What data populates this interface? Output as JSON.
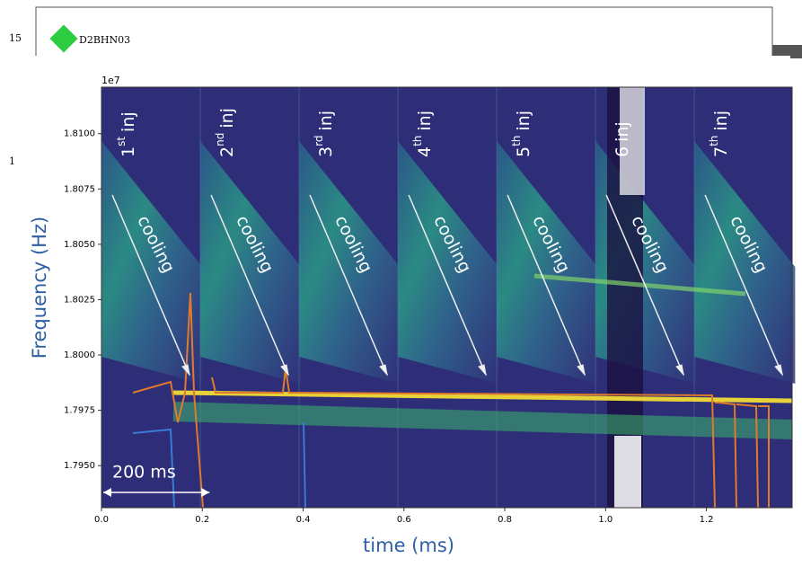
{
  "background": {
    "tick_label": "15",
    "trace_label": "D2BHN03",
    "tick_label_2": "1"
  },
  "chart_data": {
    "type": "spectrogram",
    "y_offset_label": "1e7",
    "x_label": "time (ms)",
    "y_label": "Frequency (Hz)",
    "xlim": [
      0,
      1.37
    ],
    "ylim": [
      1.7931,
      1.8121
    ],
    "xticks": [
      {
        "value": 0,
        "label": "0.0"
      },
      0.2,
      0.4,
      0.6,
      0.8,
      {
        "value": 1,
        "label": "1.0"
      },
      1.2
    ],
    "yticks": [
      {
        "value": 1.795,
        "label": "1.7950"
      },
      {
        "value": 1.7975,
        "label": "1.7975"
      },
      {
        "value": 1.8,
        "label": "1.8000"
      },
      {
        "value": 1.8025,
        "label": "1.8025"
      },
      {
        "value": 1.805,
        "label": "1.8050"
      },
      {
        "value": 1.8075,
        "label": "1.8075"
      },
      {
        "value": 1.81,
        "label": "1.8100"
      }
    ],
    "injections": [
      {
        "n": "1",
        "sup": "st"
      },
      {
        "n": "2",
        "sup": "nd"
      },
      {
        "n": "3",
        "sup": "rd"
      },
      {
        "n": "4",
        "sup": "th"
      },
      {
        "n": "5",
        "sup": "th"
      },
      {
        "n": "6"
      },
      {
        "n": "7",
        "sup": "th"
      }
    ],
    "injection_label": "inj",
    "arrow_label": "cooling",
    "scale_bar_label": "200 ms"
  }
}
